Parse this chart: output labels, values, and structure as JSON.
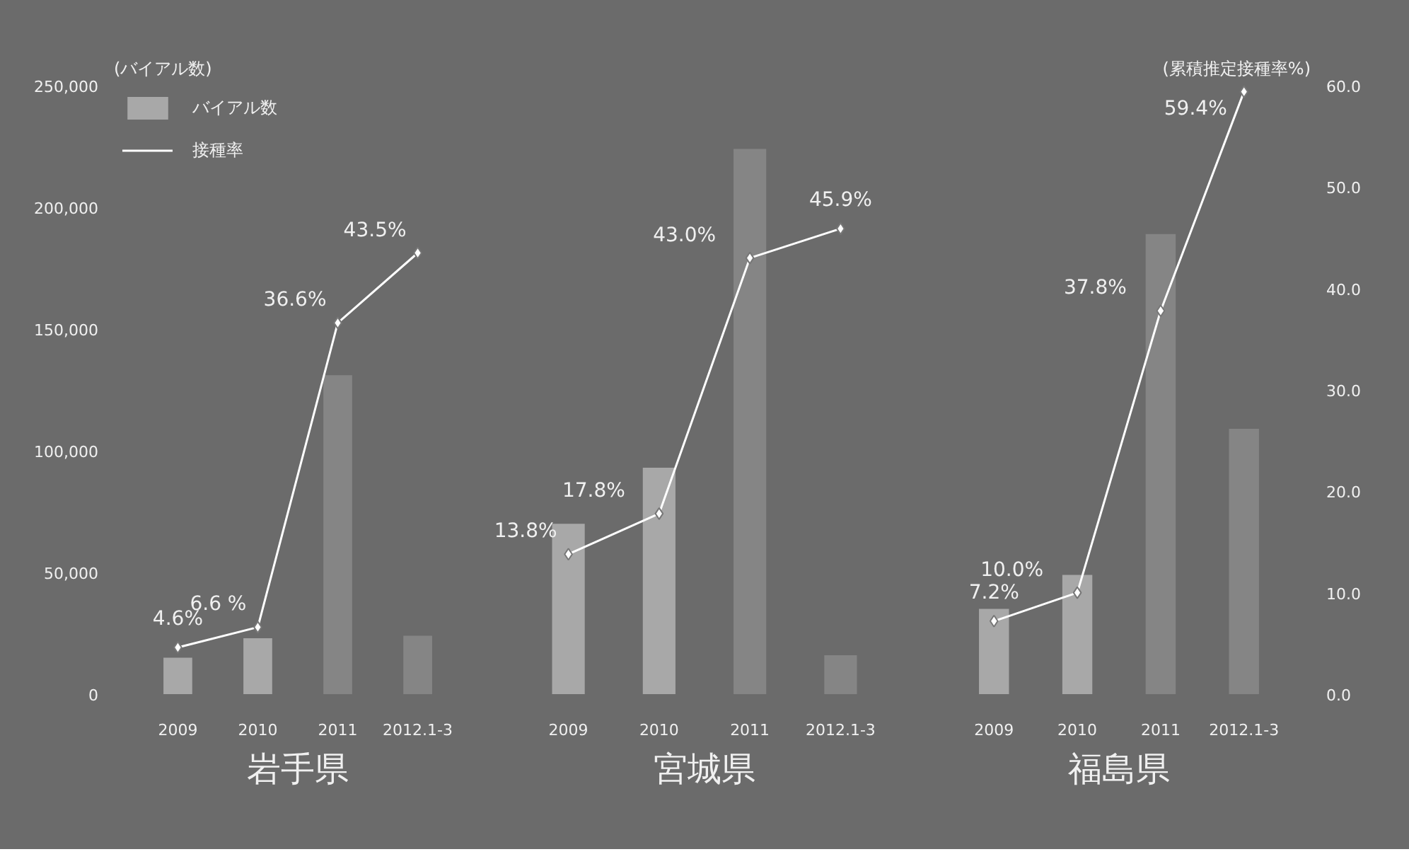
{
  "chart_data": [
    {
      "type": "bar",
      "title": "岩手県",
      "ylabel": "(バイアル数)",
      "categories": [
        "2009",
        "2010",
        "2011",
        "2012.1-3"
      ],
      "legend": "top left",
      "tick_labels": "xy",
      "marker": "diamond",
      "ylim": [
        0,
        250000
      ],
      "yticks": [
        0,
        {
          "value": 50000,
          "label": "50,000"
        },
        {
          "value": 100000,
          "label": "100,000"
        },
        {
          "value": 150000,
          "label": "150,000"
        },
        {
          "value": 200000,
          "label": "200,000"
        },
        {
          "value": 250000,
          "label": "250,000"
        }
      ],
      "y2lim": [
        0,
        60
      ],
      "series": [
        {
          "name": "接種率",
          "type": "line",
          "axis": "y2",
          "color": "#ffffff",
          "values": [
            4.6,
            6.6,
            36.6,
            43.5
          ],
          "value_labels": [
            "4.6%",
            "6.6 %",
            "36.6%",
            "43.5%"
          ]
        },
        {
          "name": "バイアル数",
          "axis": "y",
          "colors": [
            "#a8a8a8",
            "#a8a8a8",
            "#858585",
            "#858585"
          ],
          "values": [
            15000,
            23000,
            131000,
            24000
          ]
        }
      ]
    },
    {
      "type": "bar",
      "title": "宮城県",
      "categories": [
        "2009",
        "2010",
        "2011",
        "2012.1-3"
      ],
      "tick_labels": "x",
      "marker": "diamond",
      "ylim": [
        0,
        250000
      ],
      "y2lim": [
        0,
        60
      ],
      "series": [
        {
          "type": "line",
          "axis": "y2",
          "color": "#ffffff",
          "values": [
            13.8,
            17.8,
            43.0,
            45.9
          ],
          "value_labels": [
            "13.8%",
            "17.8%",
            "43.0%",
            "45.9%"
          ]
        },
        {
          "axis": "y",
          "colors": [
            "#a8a8a8",
            "#a8a8a8",
            "#858585",
            "#858585"
          ],
          "values": [
            70000,
            93000,
            224000,
            16000
          ]
        }
      ]
    },
    {
      "type": "bar",
      "title": "福島県",
      "y2label": "(累積推定接種率%)",
      "categories": [
        "2009",
        "2010",
        "2011",
        "2012.1-3"
      ],
      "tick_labels": "xy2",
      "marker": "diamond",
      "ylim": [
        0,
        250000
      ],
      "y2lim": [
        0,
        60
      ],
      "y2ticks": [
        {
          "value": 0,
          "label": "0.0"
        },
        {
          "value": 10,
          "label": "10.0"
        },
        {
          "value": 20,
          "label": "20.0"
        },
        {
          "value": 30,
          "label": "30.0"
        },
        {
          "value": 40,
          "label": "40.0"
        },
        {
          "value": 50,
          "label": "50.0"
        },
        {
          "value": 60,
          "label": "60.0"
        }
      ],
      "series": [
        {
          "type": "line",
          "axis": "y2",
          "color": "#ffffff",
          "values": [
            7.2,
            10.0,
            37.8,
            59.4
          ],
          "value_labels": [
            "7.2%",
            "10.0%",
            "37.8%",
            "59.4%"
          ]
        },
        {
          "axis": "y",
          "colors": [
            "#a8a8a8",
            "#a8a8a8",
            "#858585",
            "#858585"
          ],
          "values": [
            35000,
            49000,
            189000,
            109000
          ]
        }
      ]
    }
  ]
}
